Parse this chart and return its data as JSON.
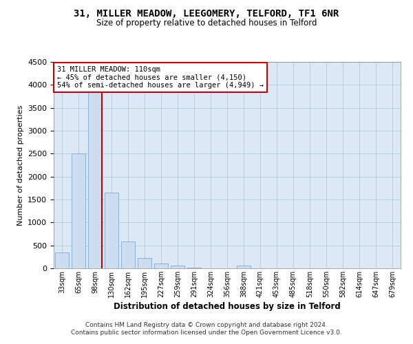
{
  "title1": "31, MILLER MEADOW, LEEGOMERY, TELFORD, TF1 6NR",
  "title2": "Size of property relative to detached houses in Telford",
  "xlabel": "Distribution of detached houses by size in Telford",
  "ylabel": "Number of detached properties",
  "categories": [
    "33sqm",
    "65sqm",
    "98sqm",
    "130sqm",
    "162sqm",
    "195sqm",
    "227sqm",
    "259sqm",
    "291sqm",
    "324sqm",
    "356sqm",
    "388sqm",
    "421sqm",
    "453sqm",
    "485sqm",
    "518sqm",
    "550sqm",
    "582sqm",
    "614sqm",
    "647sqm",
    "679sqm"
  ],
  "values": [
    350,
    2500,
    4000,
    1650,
    580,
    230,
    105,
    60,
    10,
    5,
    5,
    60,
    5,
    5,
    5,
    5,
    5,
    5,
    5,
    5,
    5
  ],
  "bar_color": "#ccddf0",
  "bar_edge_color": "#8ab0d8",
  "redline_color": "#cc0000",
  "annotation_line1": "31 MILLER MEADOW: 110sqm",
  "annotation_line2": "← 45% of detached houses are smaller (4,150)",
  "annotation_line3": "54% of semi-detached houses are larger (4,949) →",
  "annotation_box_color": "#ffffff",
  "annotation_box_edge": "#cc0000",
  "grid_color": "#b8cce0",
  "plot_bg_color": "#dce9f5",
  "ylim": [
    0,
    4500
  ],
  "yticks": [
    0,
    500,
    1000,
    1500,
    2000,
    2500,
    3000,
    3500,
    4000,
    4500
  ],
  "footer1": "Contains HM Land Registry data © Crown copyright and database right 2024.",
  "footer2": "Contains public sector information licensed under the Open Government Licence v3.0."
}
